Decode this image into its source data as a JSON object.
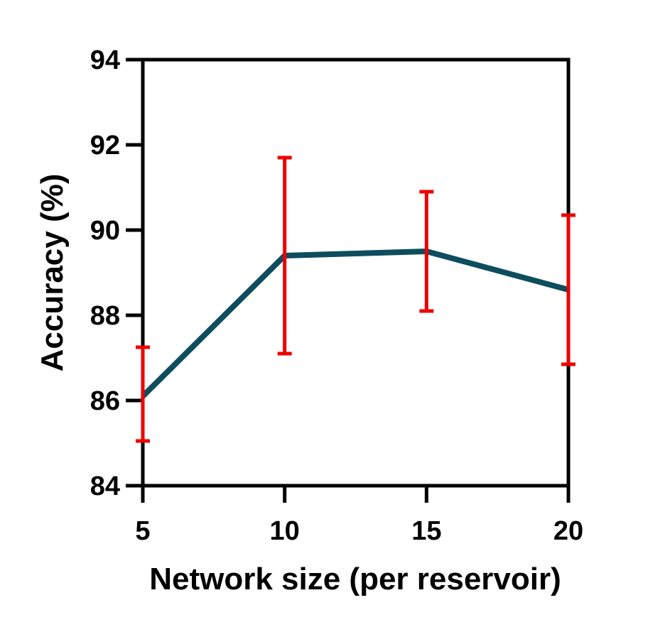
{
  "chart_data": {
    "type": "line",
    "title": "",
    "xlabel": "Network size (per reservoir)",
    "ylabel": "Accuracy (%)",
    "x": [
      5,
      10,
      15,
      20
    ],
    "series": [
      {
        "values": [
          86.1,
          89.4,
          89.5,
          88.6
        ],
        "error_low": [
          85.05,
          87.1,
          88.1,
          86.85
        ],
        "error_high": [
          87.25,
          91.7,
          90.9,
          90.35
        ]
      }
    ],
    "xlim": [
      5,
      20
    ],
    "ylim": [
      84,
      94
    ],
    "xticks": [
      "5",
      "10",
      "15",
      "20"
    ],
    "yticks": [
      "84",
      "86",
      "88",
      "90",
      "92",
      "94"
    ],
    "grid": false,
    "legend": "none",
    "colors": {
      "line": "#0d4d5e",
      "error_bar": "#ee0000",
      "axis": "#000000"
    }
  }
}
